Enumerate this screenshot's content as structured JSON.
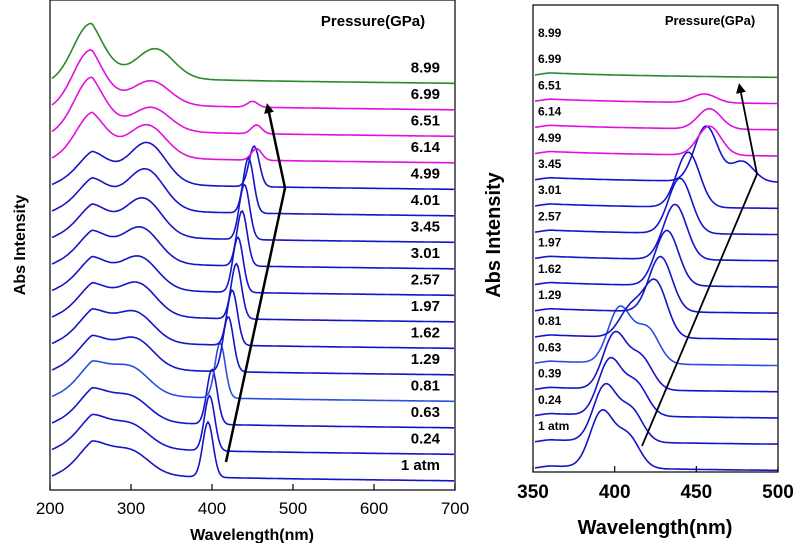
{
  "chart_data": [
    {
      "type": "line",
      "xlabel": "Wavelength(nm)",
      "ylabel": "Abs Intensity",
      "legend_title": "Pressure(GPa)",
      "xlim": [
        200,
        700
      ],
      "xticks": [
        200,
        300,
        400,
        500,
        600,
        700
      ],
      "arrow_direction": "up-right then up-left",
      "series": [
        {
          "name": "1 atm",
          "color": "#1414c8",
          "peaks": [
            [
              250,
              0.45
            ],
            [
              300,
              0.38
            ],
            [
              395,
              0.95
            ]
          ]
        },
        {
          "name": "0.24",
          "color": "#1414c8",
          "peaks": [
            [
              250,
              0.45
            ],
            [
              300,
              0.38
            ],
            [
              397,
              0.95
            ]
          ]
        },
        {
          "name": "0.63",
          "color": "#1414c8",
          "peaks": [
            [
              250,
              0.45
            ],
            [
              300,
              0.4
            ],
            [
              400,
              0.95
            ]
          ]
        },
        {
          "name": "0.81",
          "color": "#2a4fe0",
          "peaks": [
            [
              250,
              0.45
            ],
            [
              300,
              0.45
            ],
            [
              410,
              0.95
            ]
          ]
        },
        {
          "name": "1.29",
          "color": "#1414c8",
          "peaks": [
            [
              250,
              0.45
            ],
            [
              305,
              0.5
            ],
            [
              420,
              0.95
            ]
          ]
        },
        {
          "name": "1.62",
          "color": "#1414c8",
          "peaks": [
            [
              250,
              0.45
            ],
            [
              305,
              0.5
            ],
            [
              425,
              0.95
            ]
          ]
        },
        {
          "name": "1.97",
          "color": "#1414c8",
          "peaks": [
            [
              250,
              0.45
            ],
            [
              308,
              0.55
            ],
            [
              430,
              0.95
            ]
          ]
        },
        {
          "name": "2.57",
          "color": "#1414c8",
          "peaks": [
            [
              250,
              0.45
            ],
            [
              310,
              0.55
            ],
            [
              432,
              0.95
            ]
          ]
        },
        {
          "name": "3.01",
          "color": "#1414c8",
          "peaks": [
            [
              250,
              0.45
            ],
            [
              312,
              0.6
            ],
            [
              437,
              0.95
            ]
          ]
        },
        {
          "name": "3.45",
          "color": "#1414c8",
          "peaks": [
            [
              250,
              0.45
            ],
            [
              315,
              0.65
            ],
            [
              440,
              0.95
            ]
          ]
        },
        {
          "name": "4.01",
          "color": "#1414c8",
          "peaks": [
            [
              250,
              0.45
            ],
            [
              318,
              0.7
            ],
            [
              445,
              0.95
            ]
          ]
        },
        {
          "name": "4.99",
          "color": "#1414c8",
          "peaks": [
            [
              250,
              0.45
            ],
            [
              320,
              0.7
            ],
            [
              452,
              0.7
            ]
          ]
        },
        {
          "name": "6.14",
          "color": "#e010e0",
          "peaks": [
            [
              245,
              0.7
            ],
            [
              320,
              0.55
            ],
            [
              455,
              0.2
            ]
          ]
        },
        {
          "name": "6.51",
          "color": "#e010e0",
          "peaks": [
            [
              242,
              0.9
            ],
            [
              325,
              0.4
            ],
            [
              455,
              0.15
            ]
          ]
        },
        {
          "name": "6.99",
          "color": "#e010e0",
          "peaks": [
            [
              240,
              0.95
            ],
            [
              325,
              0.4
            ],
            [
              450,
              0.1
            ]
          ]
        },
        {
          "name": "8.99",
          "color": "#2a8a2a",
          "peaks": [
            [
              240,
              0.95
            ],
            [
              330,
              0.5
            ]
          ]
        }
      ]
    },
    {
      "type": "line",
      "xlabel": "Wavelength(nm)",
      "ylabel": "Abs Intensity",
      "legend_title": "Pressure(GPa)",
      "xlim": [
        350,
        500
      ],
      "xticks": [
        350,
        400,
        450,
        500
      ],
      "series": [
        {
          "name": "1 atm",
          "color": "#1414c8",
          "peaks": [
            [
              392,
              0.95
            ],
            [
              408,
              0.55
            ]
          ]
        },
        {
          "name": "0.24",
          "color": "#1414c8",
          "peaks": [
            [
              394,
              0.95
            ],
            [
              410,
              0.55
            ]
          ]
        },
        {
          "name": "0.39",
          "color": "#1414c8",
          "peaks": [
            [
              397,
              0.95
            ],
            [
              413,
              0.55
            ]
          ]
        },
        {
          "name": "0.63",
          "color": "#1414c8",
          "peaks": [
            [
              400,
              0.95
            ],
            [
              416,
              0.55
            ]
          ]
        },
        {
          "name": "0.81",
          "color": "#2a4fe0",
          "peaks": [
            [
              403,
              0.95
            ],
            [
              420,
              0.6
            ]
          ]
        },
        {
          "name": "1.29",
          "color": "#1414c8",
          "peaks": [
            [
              410,
              0.5
            ],
            [
              425,
              0.95
            ]
          ]
        },
        {
          "name": "1.62",
          "color": "#1414c8",
          "peaks": [
            [
              428,
              0.95
            ]
          ]
        },
        {
          "name": "1.97",
          "color": "#1414c8",
          "peaks": [
            [
              432,
              0.95
            ]
          ]
        },
        {
          "name": "2.57",
          "color": "#1414c8",
          "peaks": [
            [
              437,
              0.95
            ]
          ]
        },
        {
          "name": "3.01",
          "color": "#1414c8",
          "peaks": [
            [
              440,
              0.95
            ]
          ]
        },
        {
          "name": "3.45",
          "color": "#1414c8",
          "peaks": [
            [
              445,
              0.95
            ]
          ]
        },
        {
          "name": "4.99",
          "color": "#1414c8",
          "peaks": [
            [
              456,
              0.95
            ],
            [
              478,
              0.35
            ]
          ]
        },
        {
          "name": "6.14",
          "color": "#e010e0",
          "peaks": [
            [
              458,
              0.5
            ]
          ]
        },
        {
          "name": "6.51",
          "color": "#e010e0",
          "peaks": [
            [
              458,
              0.35
            ]
          ]
        },
        {
          "name": "6.99",
          "color": "#e010e0",
          "peaks": [
            [
              455,
              0.15
            ]
          ]
        },
        {
          "name": "8.99",
          "color": "#2a8a2a",
          "peaks": []
        }
      ]
    }
  ]
}
